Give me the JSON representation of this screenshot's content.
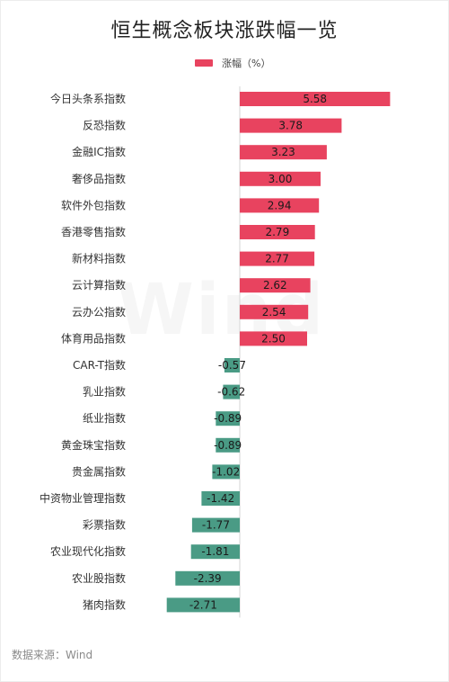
{
  "page": {
    "title": "恒生概念板块涨跌幅一览",
    "legend_label": "涨幅（%）",
    "source": "数据来源：Wind",
    "watermark": "Wind"
  },
  "colors": {
    "positive": "#e8435f",
    "negative": "#4a9b85"
  },
  "chart_data": {
    "type": "bar",
    "orientation": "horizontal",
    "title": "恒生概念板块涨跌幅一览",
    "legend": [
      "涨幅（%）"
    ],
    "legend_position": "top",
    "grid": false,
    "xlim": [
      -3,
      6
    ],
    "categories": [
      "今日头条系指数",
      "反恐指数",
      "金融IC指数",
      "奢侈品指数",
      "软件外包指数",
      "香港零售指数",
      "新材料指数",
      "云计算指数",
      "云办公指数",
      "体育用品指数",
      "CAR-T指数",
      "乳业指数",
      "纸业指数",
      "黄金珠宝指数",
      "贵金属指数",
      "中资物业管理指数",
      "彩票指数",
      "农业现代化指数",
      "农业股指数",
      "猪肉指数"
    ],
    "series": [
      {
        "name": "涨幅（%）",
        "values": [
          5.58,
          3.78,
          3.23,
          3.0,
          2.94,
          2.79,
          2.77,
          2.62,
          2.54,
          2.5,
          -0.57,
          -0.62,
          -0.89,
          -0.89,
          -1.02,
          -1.42,
          -1.77,
          -1.81,
          -2.39,
          -2.71
        ],
        "labels": [
          "5.58",
          "3.78",
          "3.23",
          "3.00",
          "2.94",
          "2.79",
          "2.77",
          "2.62",
          "2.54",
          "2.50",
          "-0.57",
          "-0.62",
          "-0.89",
          "-0.89",
          "-1.02",
          "-1.42",
          "-1.77",
          "-1.81",
          "-2.39",
          "-2.71"
        ]
      }
    ]
  }
}
